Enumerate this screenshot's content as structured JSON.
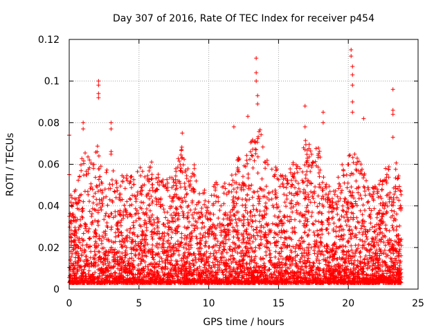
{
  "chart_data": {
    "type": "scatter",
    "title": "Day 307 of 2016, Rate Of TEC Index for receiver p454",
    "xlabel": "GPS time / hours",
    "ylabel": "ROTI / TECUs",
    "xlim": [
      0,
      25
    ],
    "ylim": [
      0,
      0.12
    ],
    "xticks": [
      0,
      5,
      10,
      15,
      20,
      25
    ],
    "xtick_labels": [
      "0",
      "5",
      "10",
      "15",
      "20",
      "25"
    ],
    "yticks": [
      0,
      0.02,
      0.04,
      0.06,
      0.08,
      0.1,
      0.12
    ],
    "ytick_labels": [
      "0",
      "0.02",
      "0.04",
      "0.06",
      "0.08",
      "0.1",
      "0.12"
    ],
    "grid": true,
    "marker": "plus",
    "color": "#ff0000",
    "series": [
      {
        "name": "ROTI",
        "x_range": [
          0,
          23.8
        ],
        "bulk_y_range": [
          0.003,
          0.045
        ],
        "notable_points": [
          {
            "x": 0.0,
            "y": 0.074
          },
          {
            "x": 0.0,
            "y": 0.055
          },
          {
            "x": 1.0,
            "y": 0.08
          },
          {
            "x": 1.0,
            "y": 0.077
          },
          {
            "x": 2.1,
            "y": 0.1
          },
          {
            "x": 2.1,
            "y": 0.098
          },
          {
            "x": 2.1,
            "y": 0.094
          },
          {
            "x": 2.1,
            "y": 0.092
          },
          {
            "x": 3.0,
            "y": 0.08
          },
          {
            "x": 3.0,
            "y": 0.077
          },
          {
            "x": 8.1,
            "y": 0.075
          },
          {
            "x": 11.8,
            "y": 0.078
          },
          {
            "x": 12.8,
            "y": 0.083
          },
          {
            "x": 13.4,
            "y": 0.111
          },
          {
            "x": 13.4,
            "y": 0.104
          },
          {
            "x": 13.4,
            "y": 0.1
          },
          {
            "x": 13.5,
            "y": 0.093
          },
          {
            "x": 13.5,
            "y": 0.089
          },
          {
            "x": 16.9,
            "y": 0.088
          },
          {
            "x": 16.9,
            "y": 0.078
          },
          {
            "x": 18.2,
            "y": 0.085
          },
          {
            "x": 18.2,
            "y": 0.08
          },
          {
            "x": 20.2,
            "y": 0.115
          },
          {
            "x": 20.2,
            "y": 0.112
          },
          {
            "x": 20.3,
            "y": 0.107
          },
          {
            "x": 20.3,
            "y": 0.103
          },
          {
            "x": 20.3,
            "y": 0.098
          },
          {
            "x": 20.3,
            "y": 0.09
          },
          {
            "x": 20.3,
            "y": 0.085
          },
          {
            "x": 21.1,
            "y": 0.082
          },
          {
            "x": 23.2,
            "y": 0.096
          },
          {
            "x": 23.2,
            "y": 0.086
          },
          {
            "x": 23.2,
            "y": 0.084
          },
          {
            "x": 23.2,
            "y": 0.073
          }
        ],
        "envelope": [
          [
            0,
            0.045
          ],
          [
            0.5,
            0.048
          ],
          [
            1.0,
            0.07
          ],
          [
            1.5,
            0.062
          ],
          [
            2.0,
            0.07
          ],
          [
            2.5,
            0.05
          ],
          [
            3.0,
            0.07
          ],
          [
            3.5,
            0.058
          ],
          [
            4.0,
            0.058
          ],
          [
            4.5,
            0.055
          ],
          [
            5.0,
            0.06
          ],
          [
            5.5,
            0.055
          ],
          [
            6.0,
            0.063
          ],
          [
            6.5,
            0.053
          ],
          [
            7.0,
            0.058
          ],
          [
            7.5,
            0.055
          ],
          [
            8.0,
            0.07
          ],
          [
            8.5,
            0.058
          ],
          [
            9.0,
            0.06
          ],
          [
            9.5,
            0.05
          ],
          [
            10.0,
            0.045
          ],
          [
            10.5,
            0.052
          ],
          [
            11.0,
            0.05
          ],
          [
            11.5,
            0.055
          ],
          [
            12.0,
            0.065
          ],
          [
            12.5,
            0.06
          ],
          [
            13.0,
            0.072
          ],
          [
            13.5,
            0.085
          ],
          [
            14.0,
            0.065
          ],
          [
            14.5,
            0.058
          ],
          [
            15.0,
            0.06
          ],
          [
            15.5,
            0.055
          ],
          [
            16.0,
            0.062
          ],
          [
            16.5,
            0.058
          ],
          [
            17.0,
            0.075
          ],
          [
            17.5,
            0.065
          ],
          [
            18.0,
            0.072
          ],
          [
            18.5,
            0.05
          ],
          [
            19.0,
            0.048
          ],
          [
            19.5,
            0.06
          ],
          [
            20.0,
            0.065
          ],
          [
            20.5,
            0.07
          ],
          [
            21.0,
            0.06
          ],
          [
            21.5,
            0.048
          ],
          [
            22.0,
            0.05
          ],
          [
            22.5,
            0.055
          ],
          [
            23.0,
            0.065
          ],
          [
            23.5,
            0.06
          ],
          [
            23.8,
            0.045
          ]
        ]
      }
    ]
  }
}
